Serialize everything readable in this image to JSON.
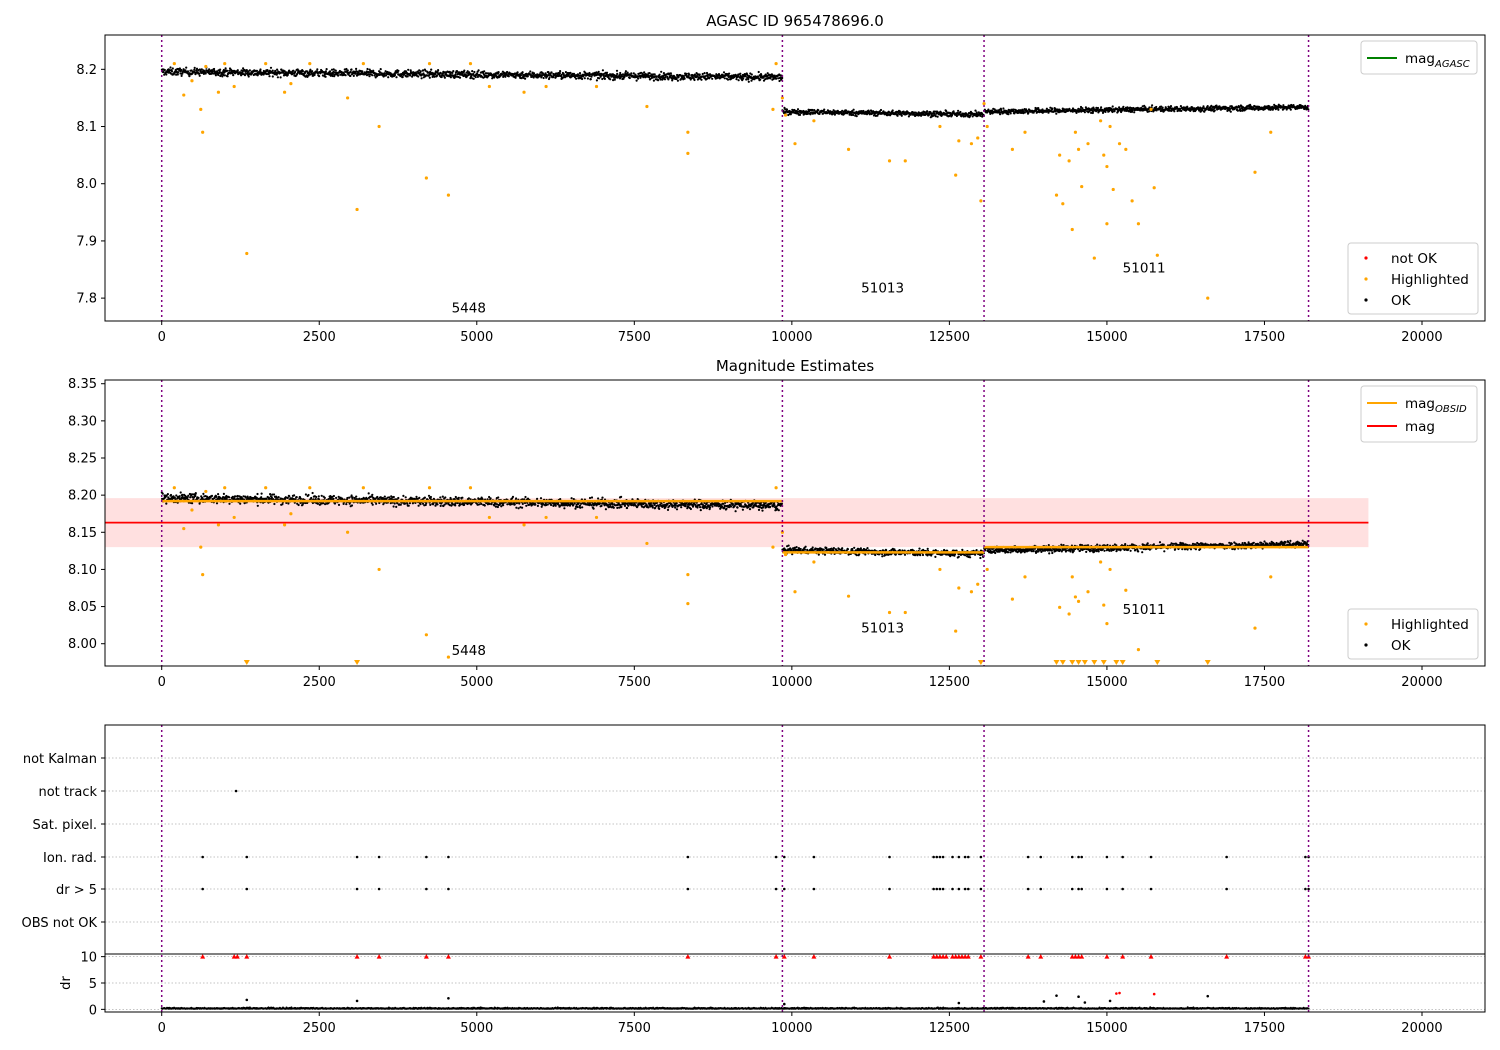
{
  "chart_data": [
    {
      "type": "scatter",
      "title": "AGASC ID 965478696.0",
      "xlim": [
        -900,
        21000
      ],
      "ylim": [
        7.76,
        8.26
      ],
      "x_ticks": [
        0,
        2500,
        5000,
        7500,
        10000,
        12500,
        15000,
        17500,
        20000
      ],
      "y_ticks": [
        7.8,
        7.9,
        8.0,
        8.1,
        8.2
      ],
      "y_tick_decimals": 1,
      "grid": false,
      "obs_boundaries": [
        0,
        9850,
        13050,
        18200
      ],
      "obs_labels": [
        {
          "text": "5448",
          "x": 4600,
          "y": 7.775
        },
        {
          "text": "51013",
          "x": 11100,
          "y": 7.81
        },
        {
          "text": "51011",
          "x": 15250,
          "y": 7.845
        }
      ],
      "ok_bands": [
        {
          "x0": 0,
          "x1": 9850,
          "y_start": 8.196,
          "y_end": 8.186,
          "half_width": 0.011
        },
        {
          "x0": 9850,
          "x1": 13050,
          "y_start": 8.126,
          "y_end": 8.121,
          "half_width": 0.008
        },
        {
          "x0": 13050,
          "x1": 18200,
          "y_start": 8.126,
          "y_end": 8.134,
          "half_width": 0.008
        }
      ],
      "highlighted": {
        "x": [
          200,
          350,
          480,
          620,
          650,
          700,
          900,
          1000,
          1150,
          1350,
          1650,
          1950,
          2050,
          2350,
          2950,
          3100,
          3200,
          3450,
          4200,
          4250,
          4550,
          4900,
          5200,
          5750,
          6100,
          6900,
          7700,
          8350,
          8350,
          9700,
          9750,
          9850,
          9900,
          10050,
          10350,
          10900,
          11550,
          11800,
          12350,
          12600,
          12650,
          12850,
          12950,
          13000,
          13050,
          13100,
          13500,
          13700,
          14200,
          14250,
          14300,
          14400,
          14450,
          14500,
          14550,
          14600,
          14700,
          14800,
          14900,
          14950,
          15000,
          15000,
          15050,
          15100,
          15200,
          15300,
          15400,
          15500,
          15700,
          15750,
          15800,
          16600,
          17350,
          17600
        ],
        "y": [
          8.21,
          8.155,
          8.18,
          8.13,
          8.09,
          8.205,
          8.16,
          8.21,
          8.17,
          7.878,
          8.21,
          8.16,
          8.175,
          8.21,
          8.15,
          7.955,
          8.21,
          8.1,
          8.01,
          8.21,
          7.98,
          8.21,
          8.17,
          8.16,
          8.17,
          8.17,
          8.135,
          8.09,
          8.053,
          8.13,
          8.21,
          8.15,
          8.12,
          8.07,
          8.11,
          8.06,
          8.04,
          8.04,
          8.1,
          8.015,
          8.075,
          8.07,
          8.08,
          7.97,
          8.14,
          8.1,
          8.06,
          8.09,
          7.98,
          8.05,
          7.965,
          8.04,
          7.92,
          8.09,
          8.06,
          7.995,
          8.07,
          7.87,
          8.11,
          8.05,
          8.03,
          7.93,
          8.1,
          7.99,
          8.07,
          8.06,
          7.97,
          7.93,
          8.13,
          7.993,
          7.875,
          7.8,
          8.02,
          8.09
        ],
        "color": "#ffa500"
      },
      "legend_top": [
        {
          "label": "mag",
          "sub": "AGASC",
          "color": "#008000"
        }
      ],
      "legend_bottom": [
        {
          "label": "not OK",
          "color": "#ff0000"
        },
        {
          "label": "Highlighted",
          "color": "#ffa500"
        },
        {
          "label": "OK",
          "color": "#000000"
        }
      ]
    },
    {
      "type": "scatter",
      "title": "Magnitude Estimates",
      "xlim": [
        -900,
        21000
      ],
      "ylim": [
        7.97,
        8.355
      ],
      "x_ticks": [
        0,
        2500,
        5000,
        7500,
        10000,
        12500,
        15000,
        17500,
        20000
      ],
      "y_ticks": [
        8.0,
        8.05,
        8.1,
        8.15,
        8.2,
        8.25,
        8.3,
        8.35
      ],
      "y_tick_decimals": 2,
      "grid": false,
      "obs_boundaries": [
        0,
        9850,
        13050,
        18200
      ],
      "obs_labels": [
        {
          "text": "5448",
          "x": 4600,
          "y": 7.985
        },
        {
          "text": "51013",
          "x": 11100,
          "y": 8.015
        },
        {
          "text": "51011",
          "x": 15250,
          "y": 8.04
        }
      ],
      "ok_bands": [
        {
          "x0": 0,
          "x1": 9850,
          "y_start": 8.196,
          "y_end": 8.186,
          "half_width": 0.011
        },
        {
          "x0": 9850,
          "x1": 13050,
          "y_start": 8.126,
          "y_end": 8.121,
          "half_width": 0.008
        },
        {
          "x0": 13050,
          "x1": 18200,
          "y_start": 8.126,
          "y_end": 8.134,
          "half_width": 0.008
        }
      ],
      "mag_obsid": [
        {
          "x0": 0,
          "x1": 9850,
          "y": 8.192
        },
        {
          "x0": 9850,
          "x1": 13050,
          "y": 8.123
        },
        {
          "x0": 13050,
          "x1": 18200,
          "y": 8.13
        }
      ],
      "mag": {
        "x0": -900,
        "x1": 19150,
        "y": 8.163,
        "band": [
          8.13,
          8.196
        ]
      },
      "highlighted": {
        "x": [
          200,
          350,
          480,
          620,
          650,
          700,
          900,
          1000,
          1150,
          1650,
          1950,
          2050,
          2350,
          2950,
          3200,
          3450,
          4200,
          4250,
          4550,
          4900,
          5200,
          5750,
          6100,
          6900,
          7700,
          8350,
          8350,
          9700,
          9750,
          9850,
          9900,
          10050,
          10350,
          10900,
          11550,
          11800,
          12350,
          12600,
          12650,
          12850,
          12950,
          13100,
          13500,
          13700,
          14250,
          14400,
          14450,
          14500,
          14550,
          14700,
          14900,
          14950,
          15000,
          15050,
          15300,
          15500,
          15700,
          17350,
          17600
        ],
        "y": [
          8.21,
          8.155,
          8.18,
          8.13,
          8.093,
          8.205,
          8.16,
          8.21,
          8.17,
          8.21,
          8.16,
          8.175,
          8.21,
          8.15,
          8.21,
          8.1,
          8.012,
          8.21,
          7.982,
          8.21,
          8.17,
          8.16,
          8.17,
          8.17,
          8.135,
          8.093,
          8.054,
          8.13,
          8.21,
          8.15,
          8.12,
          8.07,
          8.11,
          8.064,
          8.042,
          8.042,
          8.1,
          8.017,
          8.075,
          8.07,
          8.08,
          8.1,
          8.06,
          8.09,
          8.049,
          8.04,
          8.09,
          8.063,
          8.057,
          8.07,
          8.11,
          8.052,
          8.027,
          8.1,
          8.072,
          7.992,
          8.13,
          8.021,
          8.09
        ],
        "color": "#ffa500"
      },
      "below_range": {
        "x": [
          1350,
          3100,
          13000,
          14200,
          14300,
          14450,
          14550,
          14650,
          14800,
          14950,
          15150,
          15250,
          15800,
          16600
        ],
        "color": "#ffa500"
      },
      "legend_top": [
        {
          "label": "mag",
          "sub": "OBSID",
          "color": "#ffa500"
        },
        {
          "label": "mag",
          "sub": "",
          "color": "#ff0000"
        }
      ],
      "legend_bottom": [
        {
          "label": "Highlighted",
          "color": "#ffa500"
        },
        {
          "label": "OK",
          "color": "#000000"
        }
      ]
    },
    {
      "type": "scatter",
      "title": "",
      "xlim": [
        -900,
        21000
      ],
      "x_ticks": [
        0,
        2500,
        5000,
        7500,
        10000,
        12500,
        15000,
        17500,
        20000
      ],
      "obs_boundaries": [
        0,
        9850,
        13050,
        18200
      ],
      "flag_categories": [
        "not Kalman",
        "not track",
        "Sat. pixel.",
        "Ion. rad.",
        "dr > 5",
        "OBS not OK"
      ],
      "flags": {
        "not Kalman": [],
        "not track": [
          1180
        ],
        "Sat. pixel.": [],
        "Ion. rad.": [
          650,
          1350,
          3100,
          3450,
          4200,
          4550,
          8350,
          9750,
          9880,
          10350,
          11550,
          12250,
          12300,
          12350,
          12400,
          12550,
          12650,
          12750,
          12800,
          13000,
          13750,
          13950,
          14450,
          14550,
          14600,
          15000,
          15250,
          15700,
          16900,
          18150,
          18200
        ],
        "dr > 5": [
          650,
          1350,
          3100,
          3450,
          4200,
          4550,
          8350,
          9750,
          9880,
          10350,
          11550,
          12250,
          12300,
          12350,
          12400,
          12550,
          12650,
          12750,
          12800,
          13000,
          13750,
          13950,
          14450,
          14550,
          14600,
          15000,
          15250,
          15700,
          16900,
          18150,
          18200
        ],
        "OBS not OK": []
      },
      "dr_label": "dr",
      "dr_ticks": [
        0,
        5,
        10
      ],
      "dr_ylim": [
        -0.5,
        10.5
      ],
      "dr_clipped_x": [
        650,
        1150,
        1200,
        1350,
        3100,
        3450,
        4200,
        4550,
        8350,
        9750,
        9880,
        10350,
        11550,
        12250,
        12300,
        12350,
        12400,
        12450,
        12550,
        12600,
        12650,
        12700,
        12750,
        12800,
        13000,
        13750,
        13950,
        14450,
        14500,
        14550,
        14600,
        15000,
        15250,
        15700,
        16900,
        18150,
        18200
      ],
      "dr_mid": {
        "x": [
          1350,
          3100,
          4550,
          9880,
          12650,
          14000,
          14200,
          14550,
          14650,
          15050,
          15150,
          15200,
          15750,
          16600
        ],
        "y": [
          1.8,
          1.6,
          2.1,
          1.0,
          1.2,
          1.5,
          2.6,
          2.4,
          1.3,
          1.6,
          3.0,
          3.1,
          2.9,
          2.5
        ],
        "color": [
          "#000000",
          "#000000",
          "#000000",
          "#000000",
          "#000000",
          "#000000",
          "#000000",
          "#000000",
          "#000000",
          "#000000",
          "#ff0000",
          "#ff0000",
          "#ff0000",
          "#000000"
        ]
      }
    }
  ]
}
